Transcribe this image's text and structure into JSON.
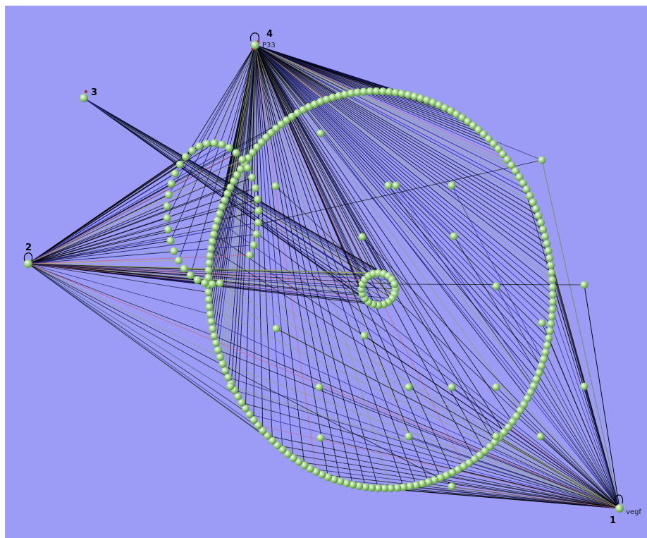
{
  "hubs": [
    {
      "id": "1",
      "number": "1",
      "tag": "vegf"
    },
    {
      "id": "2",
      "number": "2",
      "tag": ""
    },
    {
      "id": "3",
      "number": "3",
      "tag": ""
    },
    {
      "id": "4",
      "number": "4",
      "tag": "P33"
    }
  ],
  "colors": {
    "background": "#9c9cf6",
    "node_fill": "#a9d98a",
    "node_highlight": "#f4fff0",
    "node_dark": "#4d8a3a",
    "hub_marker": "#b02020",
    "edge_palette": [
      "#000000",
      "#1a1a5a",
      "#1f1f9e",
      "#c86a8a",
      "#8aa860",
      "#b0b060",
      "#2a5a5a"
    ]
  },
  "structures": {
    "large_circle_nodes": 170,
    "small_arc_nodes": 34,
    "tiny_ring_nodes": 20,
    "loose_nodes": 24
  }
}
